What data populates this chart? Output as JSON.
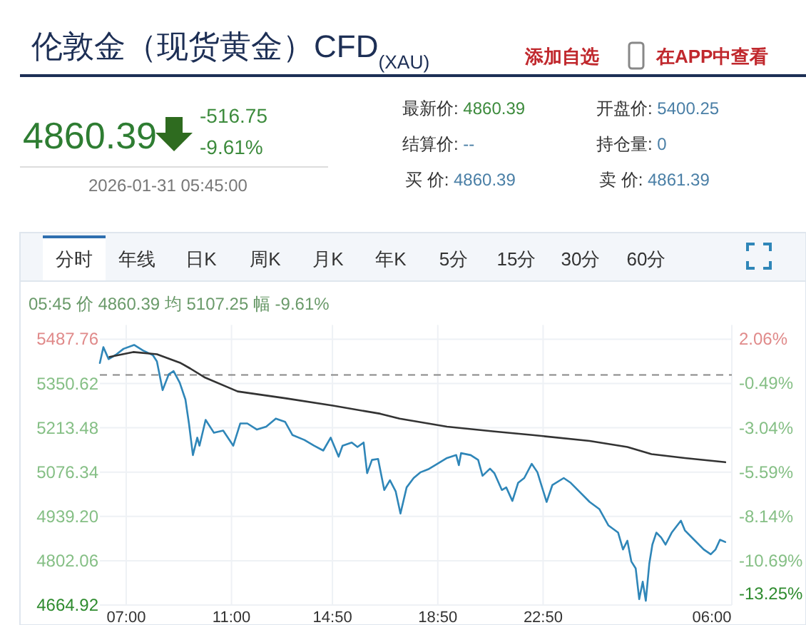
{
  "chart_data": [
    {
      "type": "other",
      "title": "伦敦金（现货黄金）CFD$_{(XAU)}$",
      "annotations": [
        "添加自选",
        "在APP中查看",
        "4860.39",
        "-516.75",
        "-9.61%",
        "2026-01-31 05:45:00",
        "最新价: 4860.39",
        "开盘价: 5400.25",
        "结算价: --",
        "持仓量: 0",
        "买 价: 4860.39",
        "卖 价: 4861.39",
        "分时",
        "年线",
        "日K",
        "周K",
        "月K",
        "年K",
        "5分",
        "15分",
        "30分",
        "60分"
      ]
    },
    {
      "type": "line",
      "subtitle": "05:45 价 4860.39 均 5107.25 幅 -9.61%",
      "grid": true,
      "xlim": [
        "2026-01-30T06:00",
        "2026-01-31T06:00"
      ],
      "xticks": [
        {
          "value": "2026-01-30T07:00",
          "label": "07:00"
        },
        {
          "value": "2026-01-30T11:00",
          "label": "11:00"
        },
        {
          "value": "2026-01-30T14:50",
          "label": "14:50"
        },
        {
          "value": "2026-01-30T18:50",
          "label": "18:50"
        },
        {
          "value": "2026-01-30T22:50",
          "label": "22:50"
        },
        {
          "value": "2026-01-31T06:00",
          "label": "06:00"
        }
      ],
      "ylim": [
        4664.92,
        5487.76
      ],
      "yticks": [
        5487.76,
        5350.62,
        5213.48,
        5076.34,
        {
          "value": 4939.2,
          "label": "4939.20"
        },
        4802.06,
        4664.92
      ],
      "y2lim": [
        -13.25,
        2.06
      ],
      "y2ticks": [
        {
          "value": 2.06,
          "label": "2.06%"
        },
        {
          "value": -0.49,
          "label": "-0.49%"
        },
        {
          "value": -3.04,
          "label": "-3.04%"
        },
        {
          "value": -5.59,
          "label": "-5.59%"
        },
        {
          "value": -8.14,
          "label": "-8.14%"
        },
        {
          "value": -10.69,
          "label": "-10.69%"
        },
        {
          "value": -13.25,
          "label": "-13.25%"
        }
      ],
      "ref_lines": [
        {
          "axis": "y",
          "value": 5377.14,
          "color": "#888888",
          "line_style": "dashed"
        }
      ],
      "series": [
        {
          "color": "#2f86b8",
          "x": [
            "2026-01-30T06:00",
            "2026-01-30T06:08",
            "2026-01-30T06:20",
            "2026-01-30T06:38",
            "2026-01-30T06:54",
            "2026-01-30T07:18",
            "2026-01-30T07:38",
            "2026-01-30T08:01",
            "2026-01-30T08:10",
            "2026-01-30T08:23",
            "2026-01-30T08:37",
            "2026-01-30T08:48",
            "2026-01-30T09:02",
            "2026-01-30T09:15",
            "2026-01-30T09:23",
            "2026-01-30T09:32",
            "2026-01-30T09:42",
            "2026-01-30T09:47",
            "2026-01-30T10:01",
            "2026-01-30T10:20",
            "2026-01-30T10:41",
            "2026-01-30T11:04",
            "2026-01-30T11:20",
            "2026-01-30T11:36",
            "2026-01-30T11:58",
            "2026-01-30T12:19",
            "2026-01-30T12:41",
            "2026-01-30T13:02",
            "2026-01-30T13:19",
            "2026-01-30T13:46",
            "2026-01-30T14:08",
            "2026-01-30T14:29",
            "2026-01-30T14:46",
            "2026-01-30T15:04",
            "2026-01-30T15:13",
            "2026-01-30T15:34",
            "2026-01-30T15:47",
            "2026-01-30T16:01",
            "2026-01-30T16:09",
            "2026-01-30T16:20",
            "2026-01-30T16:34",
            "2026-01-30T16:48",
            "2026-01-30T17:01",
            "2026-01-30T17:14",
            "2026-01-30T17:25",
            "2026-01-30T17:39",
            "2026-01-30T17:55",
            "2026-01-30T18:11",
            "2026-01-30T18:28",
            "2026-01-30T18:49",
            "2026-01-30T19:11",
            "2026-01-30T19:32",
            "2026-01-30T19:38",
            "2026-01-30T19:43",
            "2026-01-30T20:05",
            "2026-01-30T20:22",
            "2026-01-30T20:32",
            "2026-01-30T20:49",
            "2026-01-30T20:59",
            "2026-01-30T21:16",
            "2026-01-30T21:26",
            "2026-01-30T21:40",
            "2026-01-30T21:53",
            "2026-01-30T22:07",
            "2026-01-30T22:24",
            "2026-01-30T22:37",
            "2026-01-30T22:46",
            "2026-01-30T22:58",
            "2026-01-30T23:11",
            "2026-01-30T23:37",
            "2026-01-30T23:53",
            "2026-01-31T00:14",
            "2026-01-31T00:36",
            "2026-01-31T00:58",
            "2026-01-31T01:19",
            "2026-01-31T01:41",
            "2026-01-31T01:52",
            "2026-01-31T02:02",
            "2026-01-31T02:11",
            "2026-01-31T02:21",
            "2026-01-31T02:29",
            "2026-01-31T02:37",
            "2026-01-31T02:44",
            "2026-01-31T02:52",
            "2026-01-31T02:59",
            "2026-01-31T03:08",
            "2026-01-31T03:19",
            "2026-01-31T03:29",
            "2026-01-31T03:43",
            "2026-01-31T04:04",
            "2026-01-31T04:13",
            "2026-01-31T04:34",
            "2026-01-31T04:56",
            "2026-01-31T05:12",
            "2026-01-31T05:23",
            "2026-01-31T05:33",
            "2026-01-31T05:45"
          ],
          "values": [
            5414,
            5463,
            5426,
            5441,
            5458,
            5470,
            5453,
            5438,
            5419,
            5330,
            5379,
            5389,
            5353,
            5301,
            5227,
            5129,
            5183,
            5158,
            5238,
            5198,
            5205,
            5158,
            5227,
            5227,
            5208,
            5217,
            5242,
            5232,
            5191,
            5176,
            5158,
            5143,
            5183,
            5124,
            5158,
            5168,
            5154,
            5168,
            5073,
            5114,
            5117,
            5021,
            5051,
            5017,
            4948,
            5029,
            5058,
            5076,
            5085,
            5102,
            5120,
            5129,
            5098,
            5135,
            5129,
            5114,
            5065,
            5087,
            5073,
            5021,
            5029,
            4987,
            5043,
            5058,
            5102,
            5076,
            5036,
            4984,
            5036,
            5058,
            5043,
            5014,
            4984,
            4962,
            4911,
            4889,
            4837,
            4864,
            4800,
            4778,
            4683,
            4737,
            4678,
            4793,
            4852,
            4889,
            4874,
            4852,
            4889,
            4926,
            4896,
            4867,
            4837,
            4822,
            4837,
            4867,
            4860
          ]
        },
        {
          "color": "#333333",
          "x": [
            "2026-01-30T06:22",
            "2026-01-30T07:16",
            "2026-01-30T08:10",
            "2026-01-30T09:04",
            "2026-01-30T09:26",
            "2026-01-30T09:58",
            "2026-01-30T11:14",
            "2026-01-30T13:02",
            "2026-01-30T14:51",
            "2026-01-30T16:39",
            "2026-01-30T17:23",
            "2026-01-30T19:11",
            "2026-01-30T20:59",
            "2026-01-30T22:26",
            "2026-01-31T00:36",
            "2026-01-31T02:02",
            "2026-01-31T02:57",
            "2026-01-31T04:13",
            "2026-01-31T05:45"
          ],
          "values": [
            5433,
            5448,
            5441,
            5414,
            5397,
            5370,
            5326,
            5305,
            5282,
            5257,
            5242,
            5217,
            5202,
            5191,
            5173,
            5154,
            5132,
            5120,
            5107
          ]
        }
      ]
    }
  ]
}
